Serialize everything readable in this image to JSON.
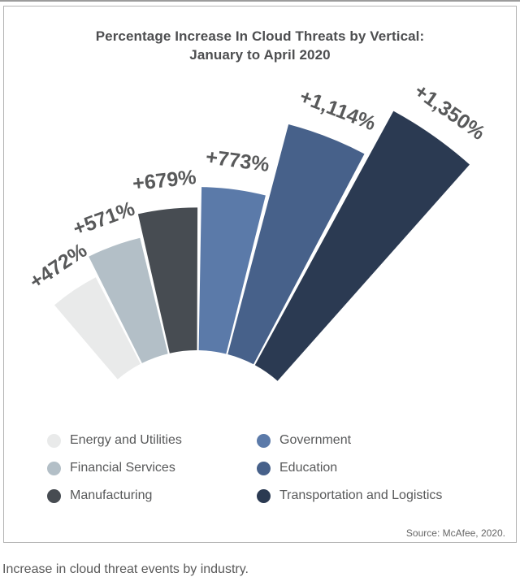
{
  "card": {
    "title_line1": "Percentage Increase In Cloud Threats by Vertical:",
    "title_line2": "January to April 2020",
    "source": "Source: McAfee, 2020."
  },
  "caption": "Increase in cloud threat events by industry.",
  "chart_data": {
    "type": "bar",
    "subtype": "radial-fan",
    "title": "Percentage Increase In Cloud Threats by Vertical: January to April 2020",
    "categories": [
      "Energy and Utilities",
      "Financial Services",
      "Manufacturing",
      "Government",
      "Education",
      "Transportation and Logistics"
    ],
    "values": [
      472,
      571,
      679,
      773,
      1114,
      1350
    ],
    "value_labels": [
      "+472%",
      "+571%",
      "+679%",
      "+773%",
      "+1,114%",
      "+1,350%"
    ],
    "colors": [
      "#e9eaea",
      "#b3bfc7",
      "#474c52",
      "#5b7aa9",
      "#47618a",
      "#2b3a52"
    ],
    "unit": "%",
    "value_range": [
      0,
      1350
    ],
    "legend_position": "bottom",
    "source": "Source: McAfee, 2020."
  },
  "legend": {
    "column_split": 3
  }
}
